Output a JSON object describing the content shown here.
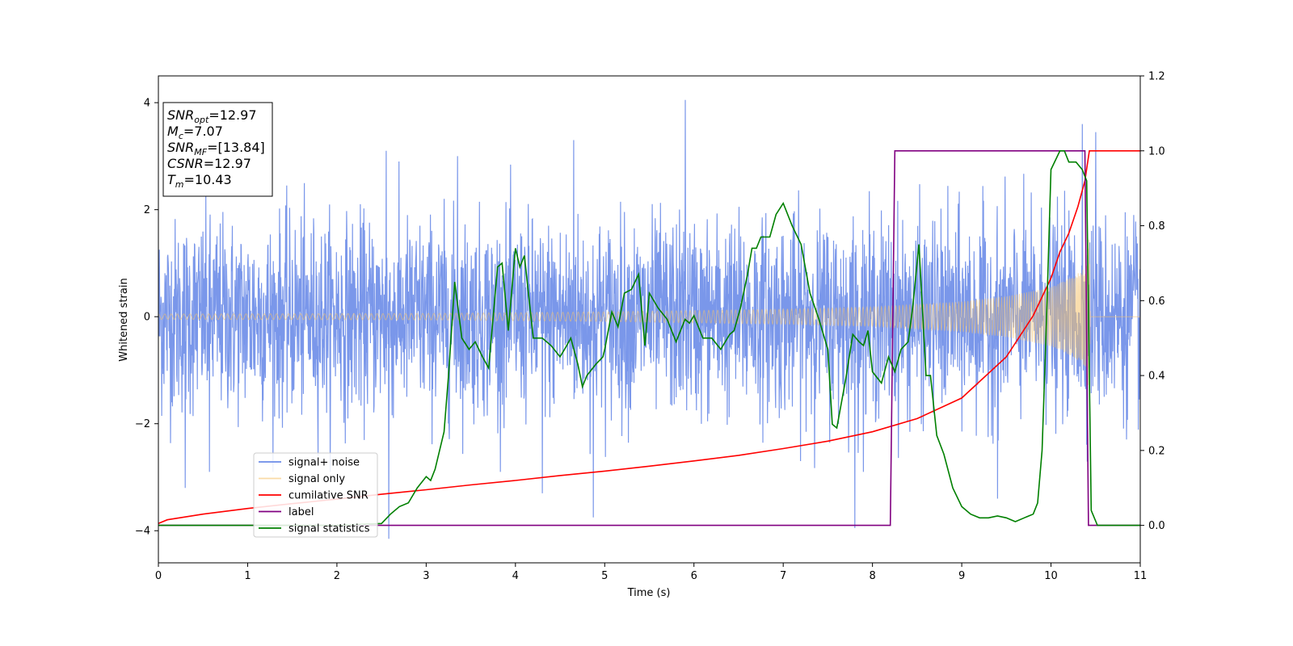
{
  "chart_data": {
    "type": "line",
    "title": "",
    "xlabel": "Time (s)",
    "ylabel": "Whitened strain",
    "xlim": [
      0,
      11
    ],
    "ylim_left": [
      -4.6,
      4.5
    ],
    "ylim_right": [
      -0.1,
      1.2
    ],
    "x_ticks": [
      "0",
      "1",
      "2",
      "3",
      "4",
      "5",
      "6",
      "7",
      "8",
      "9",
      "10",
      "11"
    ],
    "y_left_ticks": [
      "4",
      "2",
      "0",
      "−2",
      "−4"
    ],
    "y_right_ticks": [
      "1.2",
      "1.0",
      "0.8",
      "0.6",
      "0.4",
      "0.2",
      "0.0"
    ],
    "grid": false,
    "legend_position": "lower-left",
    "annotation": {
      "lines": [
        {
          "sym": "SNR",
          "sub": "opt",
          "value": "=12.97"
        },
        {
          "sym": "M",
          "sub": "c",
          "value": "=7.07"
        },
        {
          "sym": "SNR",
          "sub": "MF",
          "value": "=[13.84]"
        },
        {
          "sym": "CSNR",
          "sub": "",
          "value": "=12.97"
        },
        {
          "sym": "T",
          "sub": "m",
          "value": "=10.43"
        }
      ]
    },
    "series": [
      {
        "name": "signal+ noise",
        "axis": "left",
        "color": "#6b8ce8",
        "noise_std": 0.9,
        "outliers": [
          [
            0.3,
            -3.2
          ],
          [
            0.57,
            -2.9
          ],
          [
            2.55,
            3.1
          ],
          [
            2.58,
            -4.15
          ],
          [
            3.35,
            3.0
          ],
          [
            4.3,
            -3.3
          ],
          [
            4.65,
            3.3
          ],
          [
            4.87,
            -3.75
          ],
          [
            5.9,
            4.05
          ],
          [
            7.8,
            -3.95
          ],
          [
            9.4,
            -3.4
          ],
          [
            10.35,
            3.6
          ],
          [
            10.5,
            3.45
          ]
        ]
      },
      {
        "name": "signal only",
        "axis": "left",
        "color": "#f5c26b",
        "envelope": [
          [
            0,
            0.05
          ],
          [
            3,
            0.06
          ],
          [
            5,
            0.09
          ],
          [
            7,
            0.14
          ],
          [
            8,
            0.18
          ],
          [
            9,
            0.28
          ],
          [
            9.5,
            0.38
          ],
          [
            10,
            0.55
          ],
          [
            10.25,
            0.75
          ],
          [
            10.4,
            0.95
          ],
          [
            10.43,
            1.65
          ],
          [
            10.44,
            0.0
          ],
          [
            11,
            0.0
          ]
        ]
      },
      {
        "name": "cumilative SNR",
        "axis": "right",
        "color": "#ff0000",
        "x": [
          0,
          0.1,
          0.5,
          1,
          1.5,
          2,
          2.5,
          3,
          3.5,
          4,
          4.5,
          5,
          5.5,
          6,
          6.5,
          7,
          7.5,
          8,
          8.5,
          9,
          9.5,
          9.8,
          10,
          10.1,
          10.2,
          10.3,
          10.38,
          10.43,
          10.45,
          11
        ],
        "y": [
          0.005,
          0.015,
          0.03,
          0.045,
          0.058,
          0.07,
          0.083,
          0.095,
          0.108,
          0.12,
          0.133,
          0.145,
          0.158,
          0.172,
          0.187,
          0.205,
          0.225,
          0.25,
          0.285,
          0.34,
          0.45,
          0.56,
          0.66,
          0.73,
          0.78,
          0.85,
          0.92,
          1.0,
          1.0,
          1.0
        ]
      },
      {
        "name": "label",
        "axis": "right",
        "color": "#800080",
        "x": [
          0,
          8.2,
          8.25,
          10.38,
          10.42,
          11
        ],
        "y": [
          0.0,
          0.0,
          1.0,
          1.0,
          0.0,
          0.0
        ]
      },
      {
        "name": "signal statistics",
        "axis": "right",
        "color": "#008000",
        "x": [
          0,
          2.0,
          2.5,
          2.6,
          2.7,
          2.8,
          2.9,
          3.0,
          3.05,
          3.1,
          3.2,
          3.25,
          3.32,
          3.4,
          3.48,
          3.55,
          3.63,
          3.7,
          3.8,
          3.85,
          3.92,
          4.0,
          4.05,
          4.1,
          4.2,
          4.3,
          4.4,
          4.5,
          4.55,
          4.62,
          4.7,
          4.75,
          4.8,
          4.9,
          4.98,
          5.0,
          5.08,
          5.15,
          5.22,
          5.3,
          5.38,
          5.45,
          5.5,
          5.6,
          5.7,
          5.8,
          5.9,
          5.95,
          6.0,
          6.1,
          6.2,
          6.3,
          6.4,
          6.45,
          6.52,
          6.6,
          6.65,
          6.7,
          6.75,
          6.85,
          6.92,
          7.0,
          7.1,
          7.2,
          7.3,
          7.4,
          7.5,
          7.55,
          7.6,
          7.7,
          7.78,
          7.85,
          7.9,
          7.95,
          8.0,
          8.1,
          8.18,
          8.25,
          8.32,
          8.4,
          8.45,
          8.52,
          8.6,
          8.65,
          8.72,
          8.8,
          8.9,
          9.0,
          9.1,
          9.2,
          9.3,
          9.4,
          9.5,
          9.6,
          9.7,
          9.75,
          9.8,
          9.85,
          9.9,
          9.95,
          10.0,
          10.1,
          10.15,
          10.2,
          10.28,
          10.35,
          10.4,
          10.45,
          10.52,
          10.6,
          11
        ],
        "y": [
          0.0,
          0.0,
          0.005,
          0.03,
          0.05,
          0.06,
          0.1,
          0.13,
          0.12,
          0.15,
          0.25,
          0.4,
          0.65,
          0.5,
          0.47,
          0.49,
          0.45,
          0.42,
          0.69,
          0.7,
          0.52,
          0.74,
          0.69,
          0.72,
          0.5,
          0.5,
          0.48,
          0.45,
          0.47,
          0.5,
          0.43,
          0.37,
          0.4,
          0.43,
          0.45,
          0.47,
          0.57,
          0.53,
          0.62,
          0.63,
          0.67,
          0.48,
          0.62,
          0.58,
          0.55,
          0.49,
          0.55,
          0.54,
          0.56,
          0.5,
          0.5,
          0.47,
          0.51,
          0.52,
          0.58,
          0.67,
          0.74,
          0.74,
          0.77,
          0.77,
          0.83,
          0.86,
          0.8,
          0.75,
          0.62,
          0.55,
          0.47,
          0.27,
          0.26,
          0.39,
          0.51,
          0.49,
          0.48,
          0.52,
          0.41,
          0.38,
          0.45,
          0.41,
          0.47,
          0.49,
          0.58,
          0.75,
          0.4,
          0.4,
          0.24,
          0.19,
          0.1,
          0.05,
          0.03,
          0.02,
          0.02,
          0.025,
          0.02,
          0.01,
          0.02,
          0.025,
          0.03,
          0.06,
          0.2,
          0.55,
          0.95,
          1.0,
          1.0,
          0.97,
          0.97,
          0.95,
          0.92,
          0.04,
          0.0,
          0.0,
          0.0
        ]
      }
    ]
  }
}
